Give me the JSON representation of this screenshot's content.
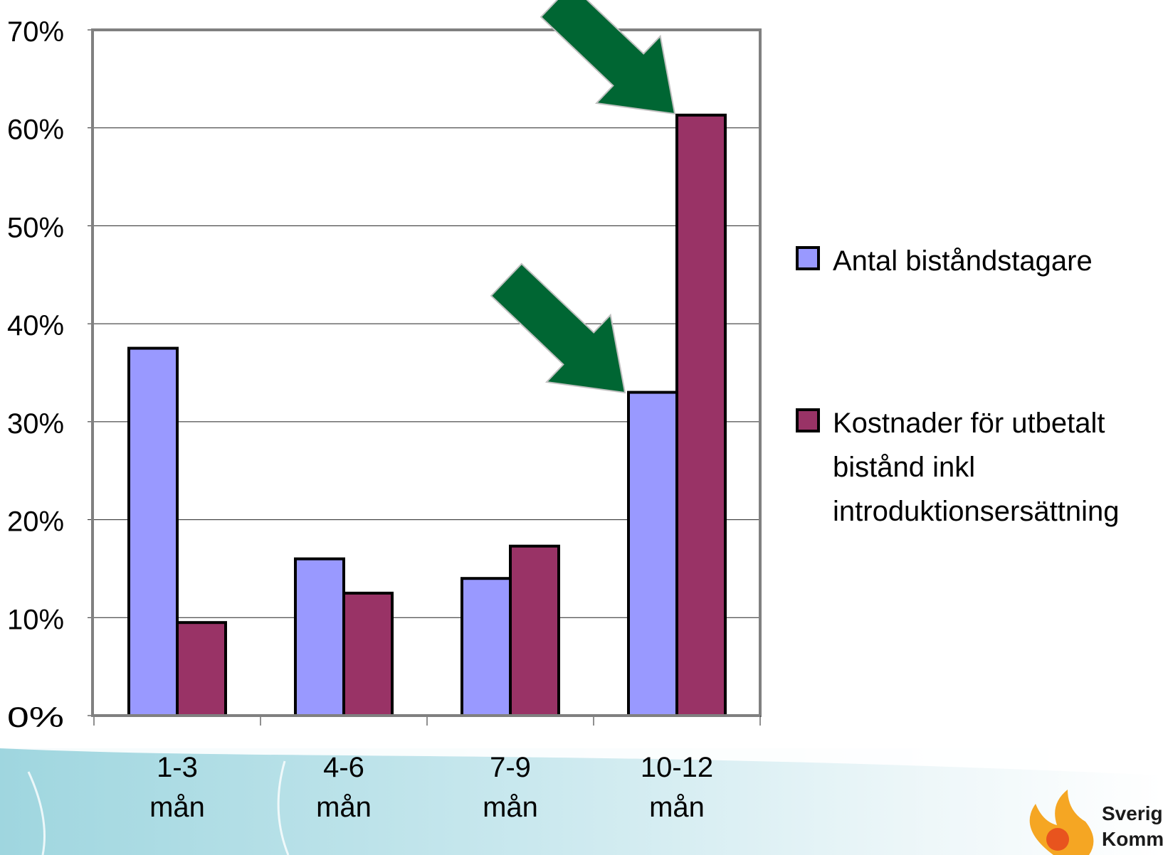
{
  "chart_data": {
    "type": "bar",
    "categories": [
      "1-3 mån",
      "4-6 mån",
      "7-9 mån",
      "10-12 mån"
    ],
    "category_lines": [
      [
        "1-3",
        "mån"
      ],
      [
        "4-6",
        "mån"
      ],
      [
        "7-9",
        "mån"
      ],
      [
        "10-12",
        "mån"
      ]
    ],
    "series": [
      {
        "name": "Antal biståndstagare",
        "values": [
          37.5,
          16,
          14,
          33
        ],
        "color": "#9999ff"
      },
      {
        "name": "Kostnader för utbetalt bistånd inkl introduktionsersättning",
        "values": [
          9.5,
          12.5,
          17.3,
          61.3
        ],
        "color": "#993366"
      }
    ],
    "legend_lines": [
      [
        "Antal biståndstagare"
      ],
      [
        "Kostnader för utbetalt",
        "bistånd inkl",
        "introduktionsersättning"
      ]
    ],
    "ylim": [
      0,
      70
    ],
    "yticks": [
      "0%",
      "10%",
      "20%",
      "30%",
      "40%",
      "50%",
      "60%",
      "70%"
    ],
    "grid": true,
    "legend_position": "right",
    "annotations": [
      {
        "type": "arrow",
        "color": "#006633",
        "points_to": "Kostnader för utbetalt bistånd inkl introduktionsersättning, 10-12 mån"
      },
      {
        "type": "arrow",
        "color": "#006633",
        "points_to": "Antal biståndstagare, 10-12 mån"
      }
    ]
  },
  "footer": {
    "logo_icon": "flame-logo-icon",
    "logo_text_lines": [
      "Sverig",
      "Komm"
    ]
  }
}
